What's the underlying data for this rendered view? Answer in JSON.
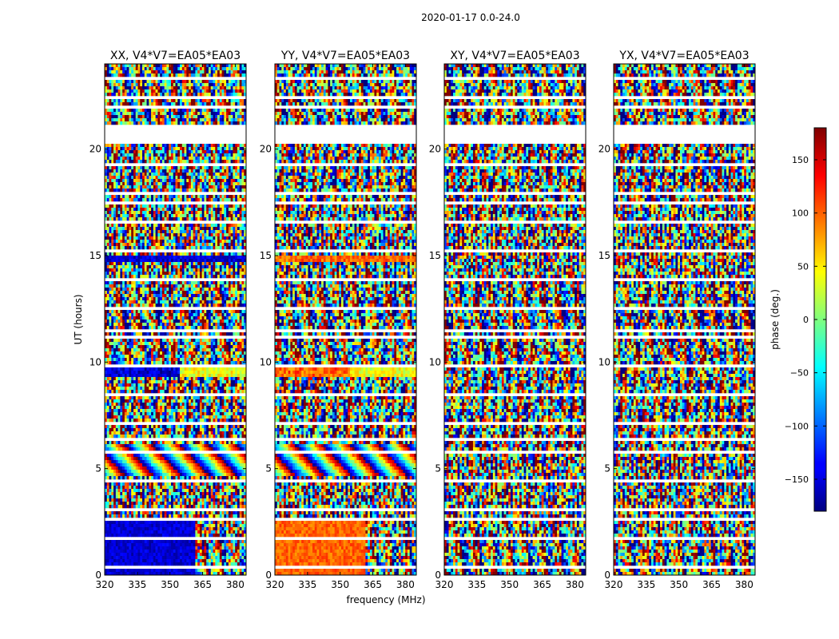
{
  "figure": {
    "suptitle": "2020-01-17 0.0-24.0"
  },
  "chart_data": {
    "type": "heatmap",
    "xlabel": "frequency (MHz)",
    "ylabel": "UT (hours)",
    "xlim": [
      320,
      385
    ],
    "ylim": [
      0,
      24
    ],
    "x_ticks": [
      320,
      335,
      350,
      365,
      380
    ],
    "y_ticks": [
      0,
      5,
      10,
      15,
      20
    ],
    "panels": [
      {
        "title": "XX, V4*V7=EA05*EA03",
        "pol": "XX"
      },
      {
        "title": "YY, V4*V7=EA05*EA03",
        "pol": "YY"
      },
      {
        "title": "XY, V4*V7=EA05*EA03",
        "pol": "XY"
      },
      {
        "title": "YX, V4*V7=EA05*EA03",
        "pol": "YX"
      }
    ],
    "flagged_ut_ranges": [
      [
        20.2,
        21.1
      ],
      [
        22.35,
        22.45
      ],
      [
        17.45,
        17.55
      ],
      [
        14.95,
        15.05
      ],
      [
        11.45,
        11.55
      ],
      [
        6.3,
        6.45
      ],
      [
        4.4,
        4.55
      ],
      [
        2.55,
        2.65
      ],
      [
        1.45,
        1.55
      ],
      [
        0.55,
        0.62
      ]
    ],
    "colorbar": {
      "label": "phase (deg.)",
      "range": [
        -180,
        180
      ],
      "ticks": [
        -150,
        -100,
        -50,
        0,
        50,
        100,
        150
      ],
      "colormap": "jet"
    }
  }
}
